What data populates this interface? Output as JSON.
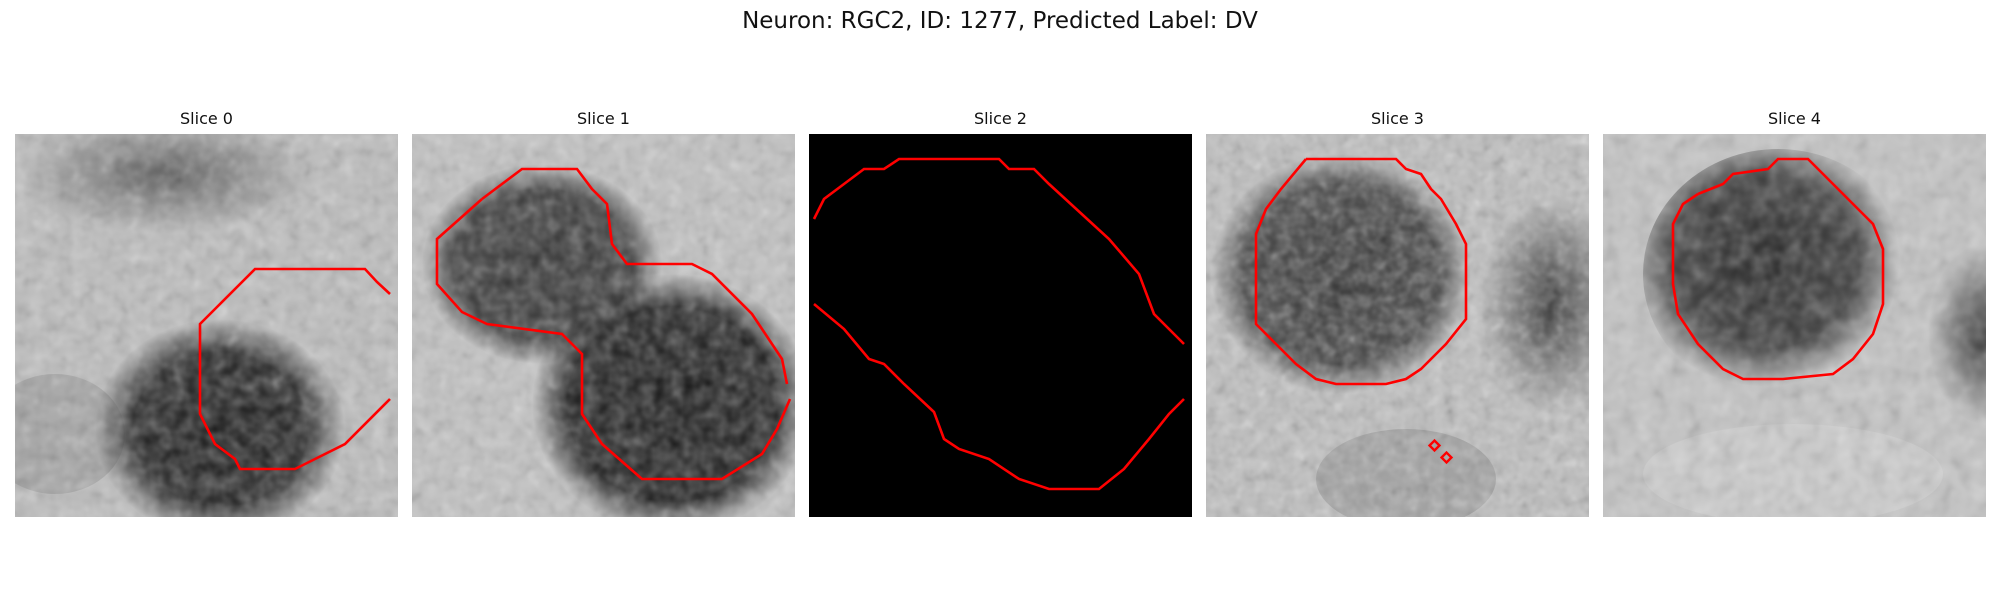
{
  "title": "Neuron: RGC2, ID: 1277, Predicted Label: DV",
  "contour_color": "#ff0000",
  "panels": [
    {
      "title": "Slice 0",
      "image": "grayscale microscopy crop with a dark cell body in the lower right"
    },
    {
      "title": "Slice 1",
      "image": "grayscale microscopy crop with two adjoined dark cell bodies"
    },
    {
      "title": "Slice 2",
      "image": "black crop"
    },
    {
      "title": "Slice 3",
      "image": "grayscale microscopy crop with a dark cell body in the upper left"
    },
    {
      "title": "Slice 4",
      "image": "grayscale microscopy crop with a dark cell body in the center"
    }
  ]
}
